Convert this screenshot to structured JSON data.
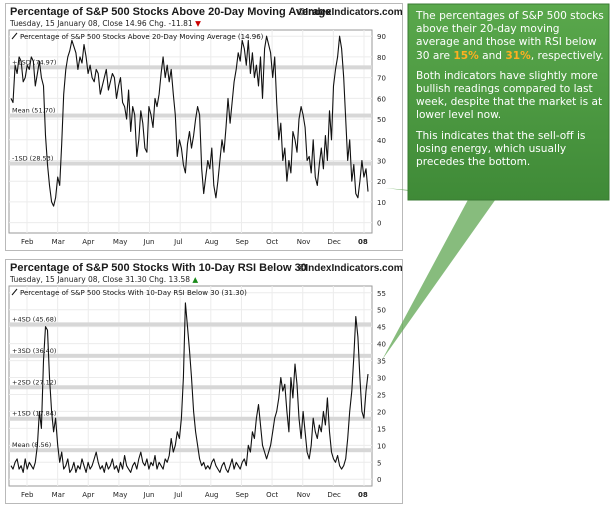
{
  "brand_mark": "©IndexIndicators.com",
  "colors": {
    "callout_bg": "#4e9a42",
    "highlight": "#ffb020",
    "line": "#111111",
    "band": "#d7d7d7",
    "down": "#cc0000",
    "up": "#1a8a1a"
  },
  "callout": {
    "p1_before": "The percentages of S&P 500 stocks above their 20-day moving average and those with RSI below 30 are ",
    "value_ma": "15%",
    "p1_mid": " and ",
    "value_rsi": "31%",
    "p1_after": ", respectively.",
    "p2": "Both indicators have slightly more bullish readings compared to last week, despite that the market is at  lower level now.",
    "p3": "This indicates that the sell-off is losing energy, which usually precedes the bottom."
  },
  "chart1": {
    "title": "Percentage of S&P 500 Stocks Above 20-Day Moving Average",
    "subtitle_date": "Tuesday, 15 January 08, Close 14.96  Chg. -11.81",
    "change_arrow": "▼",
    "legend": "Percentage of S&P 500 Stocks Above 20-Day Moving Average (14.96)",
    "bands": [
      {
        "label": "+1SD (74.97)",
        "value": 74.97
      },
      {
        "label": "Mean (51.70)",
        "value": 51.7
      },
      {
        "label": "-1SD (28.53)",
        "value": 28.53
      }
    ]
  },
  "chart2": {
    "title": "Percentage of S&P 500 Stocks With 10-Day RSI Below 30",
    "subtitle_date": "Tuesday, 15 January 08, Close 31.30  Chg. 13.58",
    "change_arrow": "▲",
    "legend": "Percentage of S&P 500 Stocks With 10-Day RSI Below 30 (31.30)",
    "bands": [
      {
        "label": "+4SD (45.68)",
        "value": 45.68
      },
      {
        "label": "+3SD (36.40)",
        "value": 36.4
      },
      {
        "label": "+2SD (27.12)",
        "value": 27.12
      },
      {
        "label": "+1SD (17.84)",
        "value": 17.84
      },
      {
        "label": "Mean (8.56)",
        "value": 8.56
      }
    ]
  },
  "chart_data": [
    {
      "type": "line",
      "title": "Percentage of S&P 500 Stocks Above 20-Day Moving Average",
      "xlabel": "",
      "ylabel": "",
      "x_ticks": [
        "Feb",
        "Mar",
        "Apr",
        "May",
        "Jun",
        "Jul",
        "Aug",
        "Sep",
        "Oct",
        "Nov",
        "Dec",
        "08"
      ],
      "y_ticks": [
        0,
        10,
        20,
        30,
        40,
        50,
        60,
        70,
        80,
        90
      ],
      "ylim": [
        -5,
        93
      ],
      "grid": true,
      "series": [
        {
          "name": "Percentage of S&P 500 Stocks Above 20-Day Moving Average",
          "values": [
            60,
            58,
            76,
            72,
            80,
            78,
            68,
            70,
            76,
            74,
            80,
            78,
            66,
            72,
            78,
            70,
            66,
            42,
            28,
            18,
            10,
            8,
            12,
            22,
            18,
            38,
            62,
            74,
            80,
            83,
            88,
            85,
            82,
            74,
            80,
            77,
            86,
            80,
            72,
            76,
            70,
            68,
            74,
            72,
            62,
            66,
            70,
            74,
            64,
            68,
            72,
            70,
            60,
            66,
            70,
            58,
            56,
            50,
            64,
            44,
            56,
            52,
            32,
            40,
            54,
            48,
            36,
            34,
            56,
            52,
            46,
            60,
            56,
            62,
            72,
            80,
            70,
            76,
            68,
            74,
            62,
            52,
            32,
            40,
            36,
            28,
            24,
            38,
            44,
            36,
            42,
            50,
            56,
            52,
            26,
            14,
            22,
            30,
            26,
            36,
            18,
            12,
            20,
            30,
            40,
            34,
            46,
            60,
            48,
            58,
            68,
            74,
            82,
            78,
            88,
            84,
            76,
            88,
            72,
            82,
            70,
            76,
            66,
            80,
            60,
            84,
            90,
            86,
            82,
            70,
            80,
            58,
            40,
            48,
            30,
            36,
            20,
            30,
            24,
            44,
            40,
            34,
            50,
            56,
            52,
            46,
            30,
            32,
            24,
            40,
            22,
            18,
            28,
            36,
            26,
            42,
            30,
            54,
            40,
            66,
            74,
            80,
            90,
            84,
            70,
            50,
            30,
            40,
            20,
            28,
            14,
            12,
            20,
            30,
            22,
            26,
            15
          ]
        }
      ]
    },
    {
      "type": "line",
      "title": "Percentage of S&P 500 Stocks With 10-Day RSI Below 30",
      "xlabel": "",
      "ylabel": "",
      "x_ticks": [
        "Feb",
        "Mar",
        "Apr",
        "May",
        "Jun",
        "Jul",
        "Aug",
        "Sep",
        "Oct",
        "Nov",
        "Dec",
        "08"
      ],
      "y_ticks": [
        0,
        5,
        10,
        15,
        20,
        25,
        30,
        35,
        40,
        45,
        50,
        55
      ],
      "ylim": [
        -2,
        57
      ],
      "grid": true,
      "series": [
        {
          "name": "Percentage of S&P 500 Stocks With 10-Day RSI Below 30",
          "values": [
            4,
            3,
            5,
            6,
            3,
            4,
            2,
            6,
            3,
            5,
            4,
            3,
            5,
            10,
            20,
            15,
            35,
            45,
            44,
            30,
            20,
            14,
            18,
            10,
            5,
            8,
            3,
            4,
            6,
            2,
            3,
            5,
            2,
            4,
            3,
            6,
            4,
            2,
            5,
            3,
            4,
            6,
            8,
            5,
            3,
            4,
            2,
            5,
            3,
            4,
            6,
            3,
            4,
            2,
            5,
            3,
            7,
            4,
            3,
            2,
            4,
            5,
            3,
            6,
            8,
            5,
            4,
            6,
            3,
            5,
            4,
            7,
            3,
            5,
            4,
            3,
            6,
            5,
            7,
            12,
            8,
            10,
            14,
            12,
            18,
            30,
            52,
            45,
            38,
            30,
            20,
            14,
            10,
            6,
            4,
            5,
            3,
            4,
            3,
            5,
            6,
            4,
            3,
            2,
            4,
            5,
            3,
            2,
            4,
            6,
            3,
            5,
            4,
            3,
            5,
            6,
            4,
            10,
            8,
            14,
            12,
            18,
            22,
            16,
            10,
            8,
            6,
            8,
            10,
            14,
            18,
            20,
            24,
            30,
            26,
            28,
            20,
            14,
            30,
            24,
            34,
            28,
            18,
            12,
            20,
            14,
            8,
            6,
            10,
            18,
            14,
            12,
            16,
            14,
            20,
            16,
            24,
            14,
            8,
            6,
            5,
            7,
            4,
            3,
            4,
            6,
            12,
            20,
            26,
            36,
            48,
            42,
            30,
            20,
            18,
            26,
            31
          ]
        }
      ]
    }
  ]
}
